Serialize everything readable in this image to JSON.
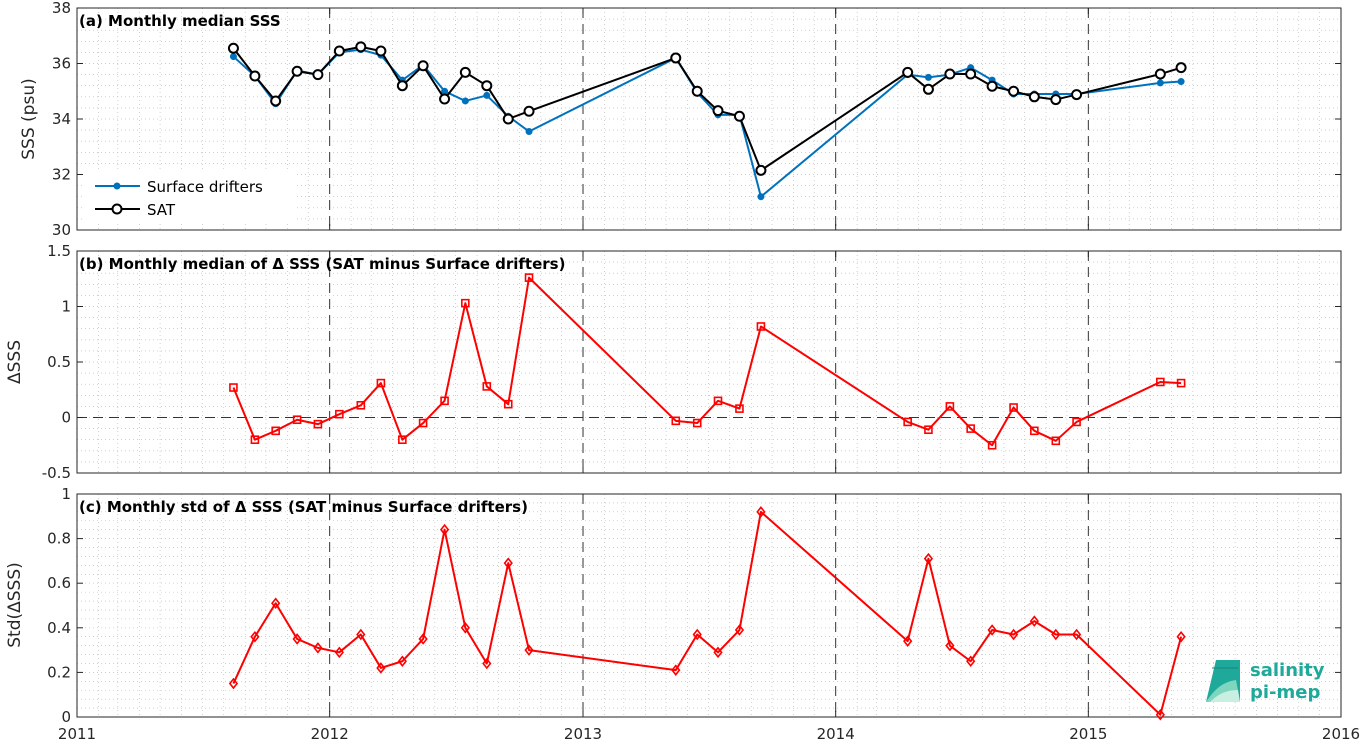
{
  "chart_data": [
    {
      "type": "line",
      "title": "(a) Monthly median SSS",
      "xlabel": "",
      "ylabel": "SSS (psu)",
      "xlim": [
        "2011-01-01",
        "2016-01-01"
      ],
      "ylim": [
        30,
        38
      ],
      "yticks": [
        "30",
        "32",
        "34",
        "36",
        "38"
      ],
      "grid": true,
      "legend": "bottom-left",
      "series": [
        {
          "name": "Surface drifters",
          "color": "#0072BD",
          "marker": "filled-dot",
          "x": [
            "2011-08",
            "2011-09",
            "2011-10",
            "2011-11",
            "2011-12",
            "2012-01",
            "2012-02",
            "2012-03",
            "2012-04",
            "2012-05",
            "2012-06",
            "2012-07",
            "2012-08",
            "2012-09",
            "2012-10",
            "2013-05",
            "2013-06",
            "2013-07",
            "2013-08",
            "2013-09",
            "2014-04",
            "2014-05",
            "2014-06",
            "2014-07",
            "2014-08",
            "2014-09",
            "2014-10",
            "2014-11",
            "2014-12",
            "2015-04",
            "2015-05"
          ],
          "values": [
            36.25,
            35.55,
            34.55,
            35.75,
            35.6,
            36.4,
            36.5,
            36.3,
            35.4,
            35.95,
            35.0,
            34.65,
            34.85,
            34.1,
            33.55,
            36.2,
            34.95,
            34.15,
            34.15,
            31.2,
            35.6,
            35.5,
            35.6,
            35.85,
            35.4,
            34.9,
            34.9,
            34.9,
            34.9,
            35.3,
            35.35
          ]
        },
        {
          "name": "SAT",
          "color": "#000000",
          "marker": "open-circle",
          "x": [
            "2011-08",
            "2011-09",
            "2011-10",
            "2011-11",
            "2011-12",
            "2012-01",
            "2012-02",
            "2012-03",
            "2012-04",
            "2012-05",
            "2012-06",
            "2012-07",
            "2012-08",
            "2012-09",
            "2012-10",
            "2013-05",
            "2013-06",
            "2013-07",
            "2013-08",
            "2013-09",
            "2014-04",
            "2014-05",
            "2014-06",
            "2014-07",
            "2014-08",
            "2014-09",
            "2014-10",
            "2014-11",
            "2014-12",
            "2015-04",
            "2015-05"
          ],
          "values": [
            36.55,
            35.55,
            34.65,
            35.72,
            35.6,
            36.45,
            36.6,
            36.45,
            35.2,
            35.92,
            34.72,
            35.68,
            35.2,
            34.0,
            34.28,
            36.2,
            35.0,
            34.3,
            34.1,
            32.15,
            35.68,
            35.07,
            35.62,
            35.62,
            35.18,
            35.0,
            34.8,
            34.7,
            34.88,
            35.62,
            35.85
          ]
        }
      ]
    },
    {
      "type": "line",
      "title": "(b) Monthly median of Δ SSS (SAT minus Surface drifters)",
      "xlabel": "",
      "ylabel": "ΔSSS",
      "xlim": [
        "2011-01-01",
        "2016-01-01"
      ],
      "ylim": [
        -0.5,
        1.5
      ],
      "yticks": [
        "-0.5",
        "0",
        "0.5",
        "1",
        "1.5"
      ],
      "grid": true,
      "reference_line": 0,
      "series": [
        {
          "color": "#FF0000",
          "marker": "open-square",
          "x": [
            "2011-08",
            "2011-09",
            "2011-10",
            "2011-11",
            "2011-12",
            "2012-01",
            "2012-02",
            "2012-03",
            "2012-04",
            "2012-05",
            "2012-06",
            "2012-07",
            "2012-08",
            "2012-09",
            "2012-10",
            "2013-05",
            "2013-06",
            "2013-07",
            "2013-08",
            "2013-09",
            "2014-04",
            "2014-05",
            "2014-06",
            "2014-07",
            "2014-08",
            "2014-09",
            "2014-10",
            "2014-11",
            "2014-12",
            "2015-04",
            "2015-05"
          ],
          "values": [
            0.27,
            -0.2,
            -0.12,
            -0.02,
            -0.06,
            0.03,
            0.11,
            0.31,
            -0.2,
            -0.05,
            0.15,
            1.03,
            0.28,
            0.12,
            1.26,
            -0.03,
            -0.05,
            0.15,
            0.08,
            0.82,
            -0.04,
            -0.11,
            0.1,
            -0.1,
            -0.25,
            0.09,
            -0.12,
            -0.21,
            -0.04,
            0.32,
            0.31
          ]
        }
      ]
    },
    {
      "type": "line",
      "title": "(c) Monthly std of Δ SSS (SAT minus Surface drifters)",
      "xlabel": "",
      "ylabel": "Std(ΔSSS)",
      "xlim": [
        "2011-01-01",
        "2016-01-01"
      ],
      "ylim": [
        0,
        1
      ],
      "yticks": [
        "0",
        "0.2",
        "0.4",
        "0.6",
        "0.8",
        "1"
      ],
      "xticks": [
        "2011",
        "2012",
        "2013",
        "2014",
        "2015",
        "2016"
      ],
      "grid": true,
      "series": [
        {
          "color": "#FF0000",
          "marker": "open-diamond",
          "x": [
            "2011-08",
            "2011-09",
            "2011-10",
            "2011-11",
            "2011-12",
            "2012-01",
            "2012-02",
            "2012-03",
            "2012-04",
            "2012-05",
            "2012-06",
            "2012-07",
            "2012-08",
            "2012-09",
            "2012-10",
            "2013-05",
            "2013-06",
            "2013-07",
            "2013-08",
            "2013-09",
            "2014-04",
            "2014-05",
            "2014-06",
            "2014-07",
            "2014-08",
            "2014-09",
            "2014-10",
            "2014-11",
            "2014-12",
            "2015-04",
            "2015-05"
          ],
          "values": [
            0.15,
            0.36,
            0.51,
            0.35,
            0.31,
            0.29,
            0.37,
            0.22,
            0.25,
            0.35,
            0.84,
            0.4,
            0.24,
            0.69,
            0.3,
            0.21,
            0.37,
            0.29,
            0.39,
            0.92,
            0.34,
            0.71,
            0.32,
            0.25,
            0.39,
            0.37,
            0.43,
            0.37,
            0.37,
            0.01,
            0.36
          ]
        }
      ]
    }
  ],
  "logo": {
    "line1": "salinity",
    "line2": "pi-mep"
  },
  "colors": {
    "drifters": "#0072BD",
    "sat": "#000000",
    "delta": "#FF0000",
    "axis": "#262626",
    "grid": "#b5b5b5",
    "logo": "#1fa99a"
  }
}
